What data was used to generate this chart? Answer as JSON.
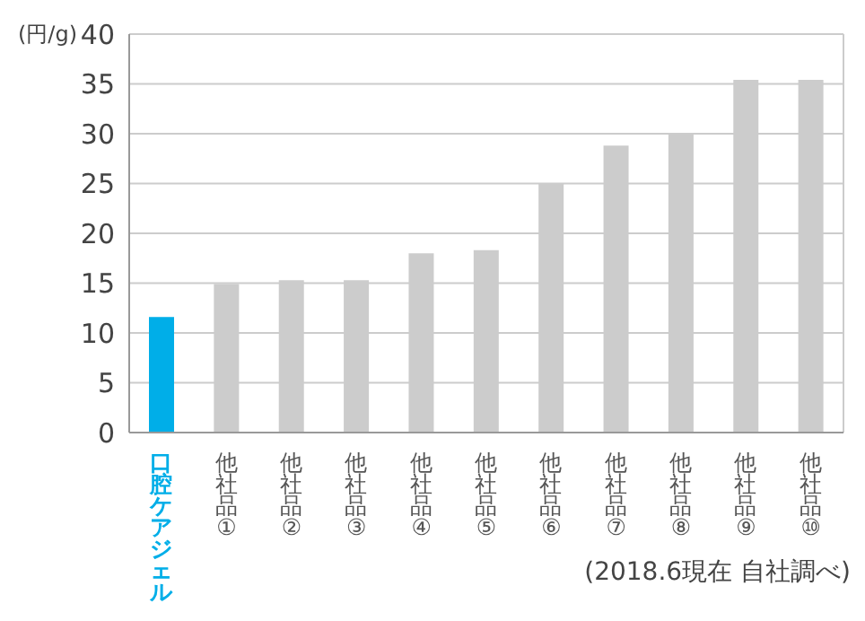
{
  "chart_data": {
    "type": "bar",
    "ylabel": "(円/g)",
    "categories": [
      "口腔ケアジェル",
      "他社品①",
      "他社品②",
      "他社品③",
      "他社品④",
      "他社品⑤",
      "他社品⑥",
      "他社品⑦",
      "他社品⑧",
      "他社品⑨",
      "他社品⑩"
    ],
    "values": [
      11.6,
      14.9,
      15.3,
      15.3,
      18.0,
      18.3,
      25.0,
      28.8,
      30.0,
      35.4,
      35.4
    ],
    "colors": [
      "#00aee8",
      "#cccccc",
      "#cccccc",
      "#cccccc",
      "#cccccc",
      "#cccccc",
      "#cccccc",
      "#cccccc",
      "#cccccc",
      "#cccccc",
      "#cccccc"
    ],
    "ylim": [
      0,
      40
    ],
    "yticks": [
      0,
      5,
      10,
      15,
      20,
      25,
      30,
      35,
      40
    ],
    "grid": "y",
    "annotations": [
      "(2018.6現在 自社調べ)"
    ]
  }
}
